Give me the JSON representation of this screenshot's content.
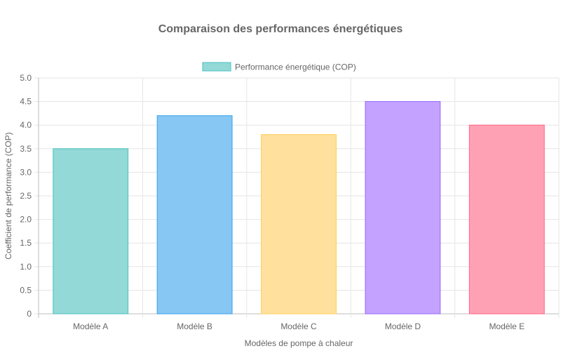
{
  "chart_data": {
    "type": "bar",
    "title": "Comparaison des performances énergétiques",
    "xlabel": "Modèles de pompe à chaleur",
    "ylabel": "Coefficient de performance (COP)",
    "categories": [
      "Modèle A",
      "Modèle B",
      "Modèle C",
      "Modèle D",
      "Modèle E"
    ],
    "series": [
      {
        "name": "Performance énergétique (COP)",
        "values": [
          3.5,
          4.2,
          3.8,
          4.5,
          4.0
        ]
      }
    ],
    "ylim": [
      0,
      5
    ],
    "yticks": [
      "0",
      "0.5",
      "1.0",
      "1.5",
      "2.0",
      "2.5",
      "3.0",
      "3.5",
      "4.0",
      "4.5",
      "5.0"
    ],
    "grid": true,
    "legend_position": "top",
    "colors": {
      "fills": [
        "#92d9d7",
        "#87c7f4",
        "#ffe09d",
        "#c3a3ff",
        "#ffa1b4"
      ],
      "borders": [
        "#4bc0c0",
        "#36a2eb",
        "#ffce56",
        "#9966ff",
        "#ff6384"
      ],
      "legend_fill": "#92d9d7",
      "legend_border": "#4bc0c0",
      "grid": "#e5e5e5",
      "text": "#666666"
    }
  }
}
